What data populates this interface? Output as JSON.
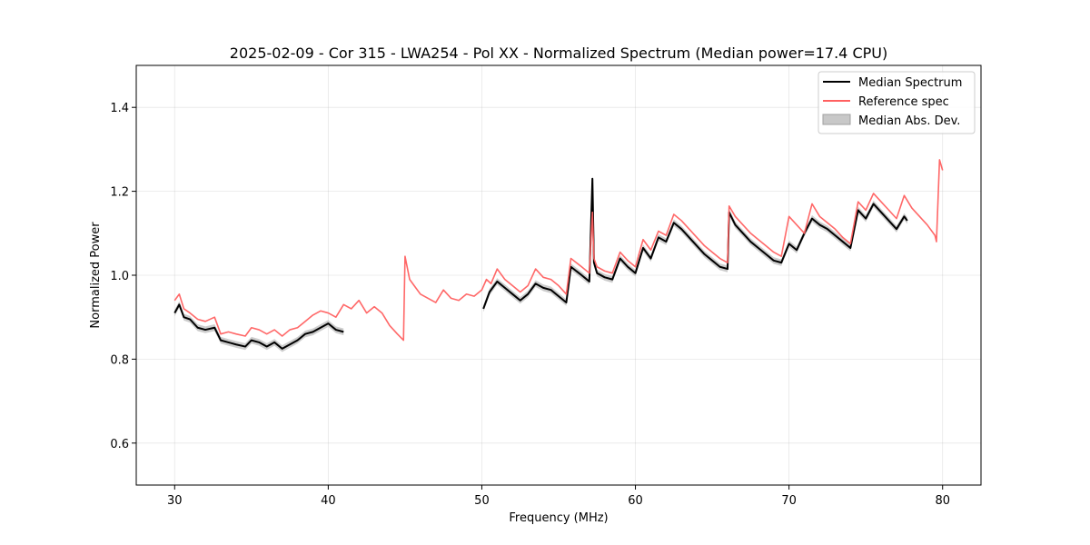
{
  "chart_data": {
    "type": "line",
    "title": "2025-02-09 - Cor 315 - LWA254 - Pol XX - Normalized Spectrum (Median power=17.4 CPU)",
    "xlabel": "Frequency (MHz)",
    "ylabel": "Normalized Power",
    "xlim": [
      27.5,
      82.5
    ],
    "ylim": [
      0.5,
      1.5
    ],
    "xticks": [
      30,
      40,
      50,
      60,
      70,
      80
    ],
    "yticks": [
      0.6,
      0.8,
      1.0,
      1.2,
      1.4
    ],
    "xtick_labels": [
      "30",
      "40",
      "50",
      "60",
      "70",
      "80"
    ],
    "ytick_labels": [
      "0.6",
      "0.8",
      "1.0",
      "1.2",
      "1.4"
    ],
    "grid": true,
    "legend_position": "top-right",
    "legend": [
      "Median Spectrum",
      "Reference spec",
      "Median Abs. Dev."
    ],
    "colors": {
      "median": "#000000",
      "reference": "#ff6060",
      "mad": "#c8c8c8"
    },
    "series": [
      {
        "name": "Median Spectrum",
        "segments": [
          {
            "x": [
              30.0,
              30.3,
              30.6,
              31.0,
              31.5,
              32.0,
              32.6,
              33.0,
              33.5,
              34.0,
              34.6,
              35.0,
              35.5,
              36.0,
              36.5,
              37.0,
              37.5,
              38.0,
              38.5,
              39.0,
              39.5,
              40.0,
              40.5,
              41.0
            ],
            "y": [
              0.91,
              0.93,
              0.9,
              0.895,
              0.875,
              0.87,
              0.875,
              0.845,
              0.84,
              0.835,
              0.83,
              0.845,
              0.84,
              0.83,
              0.84,
              0.825,
              0.835,
              0.845,
              0.86,
              0.865,
              0.875,
              0.885,
              0.87,
              0.865
            ]
          },
          {
            "x": [
              50.1,
              50.5,
              51.0,
              51.5,
              52.0,
              52.5,
              53.0,
              53.5,
              54.0,
              54.5,
              55.0,
              55.5,
              55.8,
              56.5,
              57.0,
              57.2,
              57.3,
              57.5,
              58.0,
              58.5,
              59.0,
              59.5,
              60.0,
              60.5,
              61.0,
              61.5,
              62.0,
              62.5,
              63.0,
              63.5,
              64.0,
              64.5,
              65.0,
              65.5,
              66.0,
              66.1,
              66.5,
              67.0,
              67.5,
              68.0,
              68.5,
              69.0,
              69.5,
              70.0,
              70.5,
              71.0,
              71.5,
              72.0,
              72.5,
              73.0,
              73.5,
              74.0,
              74.5,
              75.0,
              75.5,
              76.0,
              76.5,
              77.0,
              77.5,
              77.7
            ],
            "y": [
              0.92,
              0.96,
              0.985,
              0.97,
              0.955,
              0.94,
              0.955,
              0.98,
              0.97,
              0.965,
              0.95,
              0.935,
              1.02,
              1.0,
              0.985,
              1.23,
              1.03,
              1.005,
              0.995,
              0.99,
              1.04,
              1.02,
              1.005,
              1.065,
              1.04,
              1.09,
              1.08,
              1.125,
              1.11,
              1.09,
              1.07,
              1.05,
              1.035,
              1.02,
              1.015,
              1.15,
              1.12,
              1.1,
              1.08,
              1.065,
              1.05,
              1.035,
              1.03,
              1.075,
              1.06,
              1.1,
              1.135,
              1.12,
              1.11,
              1.095,
              1.08,
              1.065,
              1.155,
              1.135,
              1.17,
              1.15,
              1.13,
              1.11,
              1.14,
              1.13
            ]
          }
        ]
      },
      {
        "name": "Reference spec",
        "segments": [
          {
            "x": [
              30.0,
              30.3,
              30.6,
              31.0,
              31.5,
              32.0,
              32.6,
              33.0,
              33.5,
              34.0,
              34.6,
              35.0,
              35.5,
              36.0,
              36.5,
              37.0,
              37.5,
              38.0,
              38.5,
              39.0,
              39.5,
              40.0,
              40.5,
              41.0,
              41.5,
              42.0,
              42.5,
              43.0,
              43.5,
              44.0,
              44.5,
              44.9,
              45.0,
              45.3,
              45.7,
              46.0,
              46.5,
              47.0,
              47.5,
              48.0,
              48.5,
              49.0,
              49.5,
              50.0,
              50.3,
              50.6,
              51.0,
              51.5,
              52.0,
              52.5,
              53.0,
              53.5,
              54.0,
              54.5,
              55.0,
              55.5,
              55.8,
              56.5,
              57.0,
              57.2,
              57.3,
              57.5,
              58.0,
              58.5,
              59.0,
              59.5,
              60.0,
              60.5,
              61.0,
              61.5,
              62.0,
              62.5,
              63.0,
              63.5,
              64.0,
              64.5,
              65.0,
              65.5,
              66.0,
              66.1,
              66.5,
              67.0,
              67.5,
              68.0,
              68.5,
              69.0,
              69.5,
              70.0,
              70.5,
              71.0,
              71.5,
              72.0,
              72.5,
              73.0,
              73.5,
              74.0,
              74.5,
              75.0,
              75.5,
              76.0,
              76.5,
              77.0,
              77.5,
              78.0,
              78.5,
              79.0,
              79.5,
              79.6,
              79.8,
              80.0
            ],
            "y": [
              0.94,
              0.955,
              0.92,
              0.91,
              0.895,
              0.89,
              0.9,
              0.86,
              0.865,
              0.86,
              0.855,
              0.875,
              0.87,
              0.86,
              0.87,
              0.855,
              0.87,
              0.875,
              0.89,
              0.905,
              0.915,
              0.91,
              0.9,
              0.93,
              0.92,
              0.94,
              0.91,
              0.925,
              0.91,
              0.88,
              0.86,
              0.845,
              1.045,
              0.99,
              0.97,
              0.955,
              0.945,
              0.935,
              0.965,
              0.945,
              0.94,
              0.955,
              0.95,
              0.965,
              0.99,
              0.98,
              1.015,
              0.99,
              0.975,
              0.96,
              0.975,
              1.015,
              0.995,
              0.99,
              0.975,
              0.955,
              1.04,
              1.02,
              1.005,
              1.15,
              1.04,
              1.02,
              1.01,
              1.005,
              1.055,
              1.035,
              1.02,
              1.085,
              1.06,
              1.105,
              1.095,
              1.145,
              1.13,
              1.11,
              1.09,
              1.07,
              1.055,
              1.04,
              1.03,
              1.165,
              1.14,
              1.12,
              1.1,
              1.085,
              1.07,
              1.055,
              1.045,
              1.14,
              1.12,
              1.1,
              1.17,
              1.14,
              1.125,
              1.11,
              1.09,
              1.075,
              1.175,
              1.155,
              1.195,
              1.175,
              1.155,
              1.135,
              1.19,
              1.16,
              1.14,
              1.12,
              1.095,
              1.08,
              1.275,
              1.25
            ]
          }
        ]
      }
    ]
  }
}
